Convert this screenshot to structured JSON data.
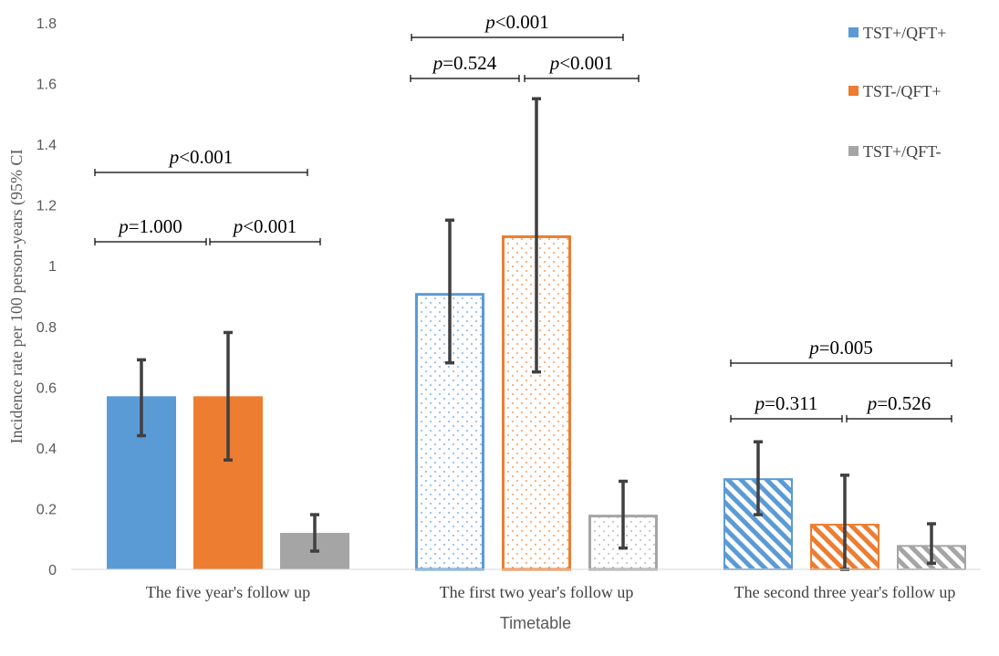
{
  "chart_data": {
    "type": "bar",
    "title": "",
    "xlabel": "Timetable",
    "ylabel": "Incidence rate per 100 person-years (95% CI",
    "ylim": [
      0,
      1.8
    ],
    "yticks": [
      "0",
      "0.2",
      "0.4",
      "0.6",
      "0.8",
      "1",
      "1.2",
      "1.4",
      "1.6",
      "1.8"
    ],
    "grid": false,
    "legend_position": "top-right",
    "categories": [
      "The five year's follow up",
      "The first two year's follow up",
      "The second three year's follow up"
    ],
    "group_styles": [
      "solid",
      "dotted",
      "hatched"
    ],
    "series": [
      {
        "name": "TST+/QFT+",
        "color": "#5b9bd5",
        "values": [
          0.57,
          0.91,
          0.3
        ],
        "ci_low": [
          0.44,
          0.68,
          0.18
        ],
        "ci_high": [
          0.69,
          1.15,
          0.42
        ]
      },
      {
        "name": "TST-/QFT+",
        "color": "#ed7d31",
        "values": [
          0.57,
          1.1,
          0.15
        ],
        "ci_low": [
          0.36,
          0.65,
          0.0
        ],
        "ci_high": [
          0.78,
          1.55,
          0.31
        ]
      },
      {
        "name": "TST+/QFT-",
        "color": "#a5a5a5",
        "values": [
          0.12,
          0.18,
          0.08
        ],
        "ci_low": [
          0.06,
          0.07,
          0.02
        ],
        "ci_high": [
          0.18,
          0.29,
          0.15
        ]
      }
    ],
    "comparisons": [
      {
        "group": 0,
        "from": 0,
        "to": 2,
        "p_prefix": "p",
        "p_text": "<0.001"
      },
      {
        "group": 0,
        "from": 0,
        "to": 1,
        "p_prefix": "p",
        "p_text": "=1.000"
      },
      {
        "group": 0,
        "from": 1,
        "to": 2,
        "p_prefix": "p",
        "p_text": "<0.001"
      },
      {
        "group": 1,
        "from": 0,
        "to": 2,
        "p_prefix": "p",
        "p_text": "<0.001"
      },
      {
        "group": 1,
        "from": 0,
        "to": 1,
        "p_prefix": "p",
        "p_text": "=0.524"
      },
      {
        "group": 1,
        "from": 1,
        "to": 2,
        "p_prefix": "p",
        "p_text": "<0.001"
      },
      {
        "group": 2,
        "from": 0,
        "to": 2,
        "p_prefix": "p",
        "p_text": "=0.005"
      },
      {
        "group": 2,
        "from": 0,
        "to": 1,
        "p_prefix": "p",
        "p_text": "=0.311"
      },
      {
        "group": 2,
        "from": 1,
        "to": 2,
        "p_prefix": "p",
        "p_text": "=0.526"
      }
    ]
  }
}
